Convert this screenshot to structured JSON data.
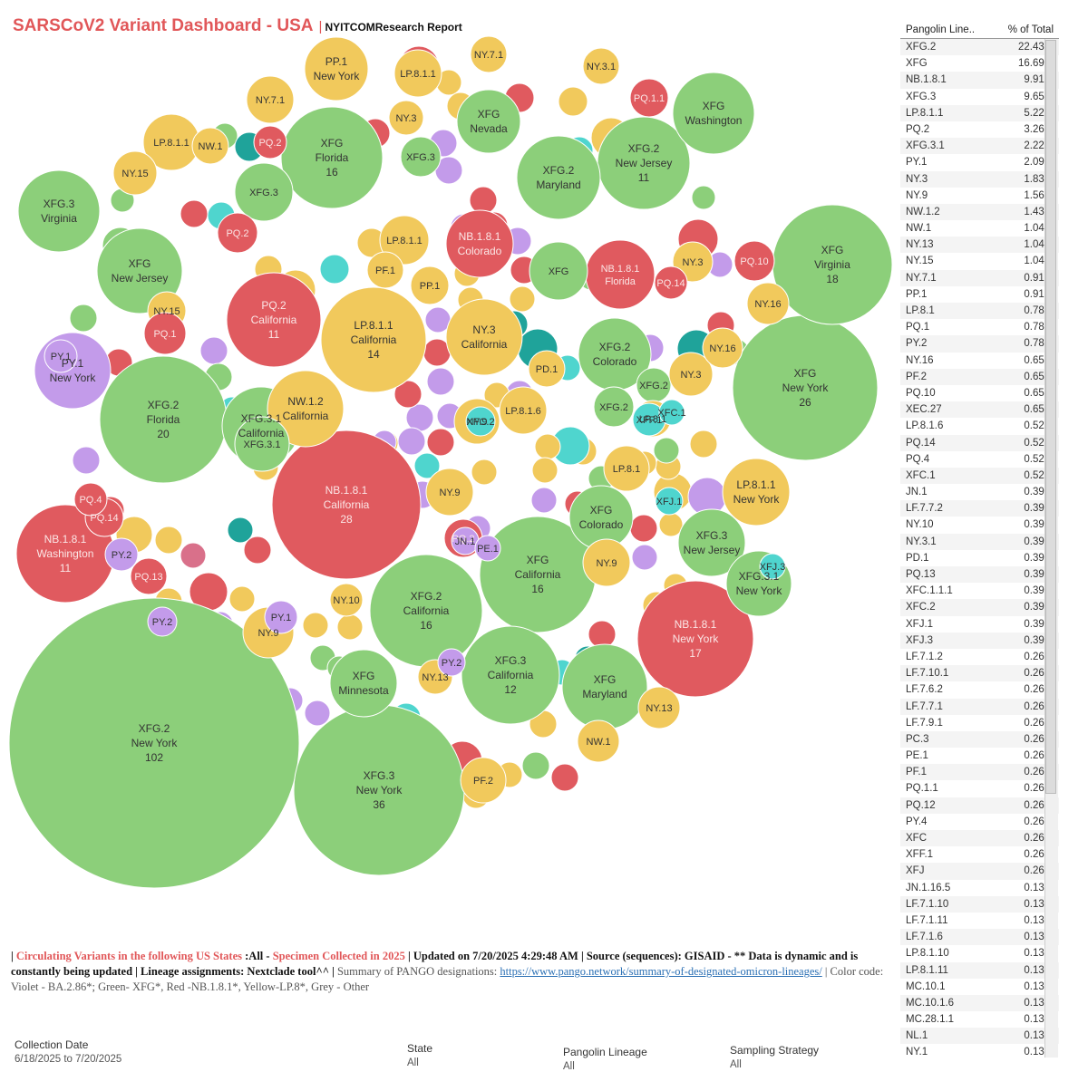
{
  "header": {
    "title": "SARSCoV2 Variant Dashboard - USA",
    "separator": "|",
    "subtitle": "NYITCOMResearch Report"
  },
  "table": {
    "col_lineage": "Pangolin Line..",
    "col_percent": "% of Total",
    "rows": [
      [
        "XFG.2",
        "22.43%"
      ],
      [
        "XFG",
        "16.69%"
      ],
      [
        "NB.1.8.1",
        "9.91%"
      ],
      [
        "XFG.3",
        "9.65%"
      ],
      [
        "LP.8.1.1",
        "5.22%"
      ],
      [
        "PQ.2",
        "3.26%"
      ],
      [
        "XFG.3.1",
        "2.22%"
      ],
      [
        "PY.1",
        "2.09%"
      ],
      [
        "NY.3",
        "1.83%"
      ],
      [
        "NY.9",
        "1.56%"
      ],
      [
        "NW.1.2",
        "1.43%"
      ],
      [
        "NW.1",
        "1.04%"
      ],
      [
        "NY.13",
        "1.04%"
      ],
      [
        "NY.15",
        "1.04%"
      ],
      [
        "NY.7.1",
        "0.91%"
      ],
      [
        "PP.1",
        "0.91%"
      ],
      [
        "LP.8.1",
        "0.78%"
      ],
      [
        "PQ.1",
        "0.78%"
      ],
      [
        "PY.2",
        "0.78%"
      ],
      [
        "NY.16",
        "0.65%"
      ],
      [
        "PF.2",
        "0.65%"
      ],
      [
        "PQ.10",
        "0.65%"
      ],
      [
        "XEC.27",
        "0.65%"
      ],
      [
        "LP.8.1.6",
        "0.52%"
      ],
      [
        "PQ.14",
        "0.52%"
      ],
      [
        "PQ.4",
        "0.52%"
      ],
      [
        "XFC.1",
        "0.52%"
      ],
      [
        "JN.1",
        "0.39%"
      ],
      [
        "LF.7.7.2",
        "0.39%"
      ],
      [
        "NY.10",
        "0.39%"
      ],
      [
        "NY.3.1",
        "0.39%"
      ],
      [
        "PD.1",
        "0.39%"
      ],
      [
        "PQ.13",
        "0.39%"
      ],
      [
        "XFC.1.1.1",
        "0.39%"
      ],
      [
        "XFC.2",
        "0.39%"
      ],
      [
        "XFJ.1",
        "0.39%"
      ],
      [
        "XFJ.3",
        "0.39%"
      ],
      [
        "LF.7.1.2",
        "0.26%"
      ],
      [
        "LF.7.10.1",
        "0.26%"
      ],
      [
        "LF.7.6.2",
        "0.26%"
      ],
      [
        "LF.7.7.1",
        "0.26%"
      ],
      [
        "LF.7.9.1",
        "0.26%"
      ],
      [
        "PC.3",
        "0.26%"
      ],
      [
        "PE.1",
        "0.26%"
      ],
      [
        "PF.1",
        "0.26%"
      ],
      [
        "PQ.1.1",
        "0.26%"
      ],
      [
        "PQ.12",
        "0.26%"
      ],
      [
        "PY.4",
        "0.26%"
      ],
      [
        "XFC",
        "0.26%"
      ],
      [
        "XFF.1",
        "0.26%"
      ],
      [
        "XFJ",
        "0.26%"
      ],
      [
        "JN.1.16.5",
        "0.13%"
      ],
      [
        "LF.7.1.10",
        "0.13%"
      ],
      [
        "LF.7.1.11",
        "0.13%"
      ],
      [
        "LF.7.1.6",
        "0.13%"
      ],
      [
        "LP.8.1.10",
        "0.13%"
      ],
      [
        "LP.8.1.11",
        "0.13%"
      ],
      [
        "MC.10.1",
        "0.13%"
      ],
      [
        "MC.10.1.6",
        "0.13%"
      ],
      [
        "MC.28.1.1",
        "0.13%"
      ],
      [
        "NL.1",
        "0.13%"
      ],
      [
        "NY.1",
        "0.13%"
      ]
    ]
  },
  "note": {
    "p1": "| ",
    "p2": "Circulating Variants in the following US States",
    "p3": " :All - ",
    "p4": "Specimen Collected in 2025",
    "p5": " | Updated on 7/20/2025 4:29:48 AM | Source (sequences): GISAID - ** Data is dynamic and is constantly being updated | Lineage assignments: Nextclade tool^^ |",
    "p6": " Summary of PANGO designations: ",
    "link": "https://www.pango.network/summary-of-designated-omicron-lineages/",
    "p7": " | Color code: Violet - BA.2.86*; Green- XFG*, Red -NB.1.8.1*, Yellow-LP.8*, Grey - Other"
  },
  "filters": {
    "collection_label": "Collection Date",
    "collection_value": "6/18/2025 to 7/20/2025",
    "state_label": "State",
    "state_value": "All",
    "lineage_label": "Pangolin Lineage",
    "lineage_value": "All",
    "sampling_label": "Sampling Strategy",
    "sampling_value": "All"
  },
  "colors": {
    "green": "#8ccf7a",
    "red": "#e05a5f",
    "yellow": "#f1c95c",
    "violet": "#c39bea",
    "cyan": "#4fd5ce",
    "teal": "#1fa39a",
    "pink": "#d9708a"
  },
  "chart_data": {
    "type": "packed-bubble",
    "bubbles": [
      {
        "c": "green",
        "l": [
          "XFG.2",
          "New York",
          "102"
        ]
      },
      {
        "c": "green",
        "l": [
          "XFG.3",
          "New York",
          "36"
        ]
      },
      {
        "c": "red",
        "l": [
          "NB.1.8.1",
          "California",
          "28"
        ]
      },
      {
        "c": "green",
        "l": [
          "XFG",
          "New York",
          "26"
        ]
      },
      {
        "c": "green",
        "l": [
          "XFG.2",
          "Florida",
          "20"
        ]
      },
      {
        "c": "green",
        "l": [
          "XFG",
          "Virginia",
          "18"
        ]
      },
      {
        "c": "red",
        "l": [
          "NB.1.8.1",
          "New York",
          "17"
        ]
      },
      {
        "c": "green",
        "l": [
          "XFG",
          "Florida",
          "16"
        ]
      },
      {
        "c": "green",
        "l": [
          "XFG",
          "California",
          "16"
        ]
      },
      {
        "c": "green",
        "l": [
          "XFG.2",
          "California",
          "16"
        ]
      },
      {
        "c": "yellow",
        "l": [
          "LP.8.1.1",
          "California",
          "14"
        ]
      },
      {
        "c": "green",
        "l": [
          "XFG.3",
          "California",
          "12"
        ]
      },
      {
        "c": "green",
        "l": [
          "XFG.2",
          "New Jersey",
          "11"
        ]
      },
      {
        "c": "red",
        "l": [
          "PQ.2",
          "California",
          "11"
        ]
      },
      {
        "c": "red",
        "l": [
          "NB.1.8.1",
          "Washington",
          "11"
        ]
      },
      {
        "c": "green",
        "l": [
          "XFG",
          "Washington"
        ]
      },
      {
        "c": "green",
        "l": [
          "XFG",
          "Nevada"
        ]
      },
      {
        "c": "green",
        "l": [
          "XFG.2",
          "Maryland"
        ]
      },
      {
        "c": "green",
        "l": [
          "XFG",
          "New Jersey"
        ]
      },
      {
        "c": "green",
        "l": [
          "XFG.3",
          "Virginia"
        ]
      },
      {
        "c": "green",
        "l": [
          "XFG",
          "Maryland"
        ]
      },
      {
        "c": "green",
        "l": [
          "XFG",
          "Minnesota"
        ]
      },
      {
        "c": "green",
        "l": [
          "XFG.2",
          "Colorado"
        ]
      },
      {
        "c": "green",
        "l": [
          "XFG",
          "Colorado"
        ]
      },
      {
        "c": "green",
        "l": [
          "XFG.3",
          "New Jersey"
        ]
      },
      {
        "c": "green",
        "l": [
          "XFG.3.1",
          "California"
        ]
      },
      {
        "c": "green",
        "l": [
          "XFG.3.1",
          "New York"
        ]
      },
      {
        "c": "yellow",
        "l": [
          "NW.1.2",
          "California"
        ]
      },
      {
        "c": "yellow",
        "l": [
          "NY.3",
          "California"
        ]
      },
      {
        "c": "yellow",
        "l": [
          "LP.8.1.1",
          "New York"
        ]
      },
      {
        "c": "yellow",
        "l": [
          "PP.1",
          "New York"
        ]
      },
      {
        "c": "violet",
        "l": [
          "PY.1",
          "New York"
        ]
      },
      {
        "c": "red",
        "l": [
          "NB.1.8.1",
          "Colorado"
        ]
      },
      {
        "c": "red",
        "l": [
          "NB.1.8.1",
          "Florida"
        ]
      },
      {
        "c": "green",
        "l": [
          "XFG"
        ]
      },
      {
        "c": "green",
        "l": [
          "XFG.3"
        ]
      },
      {
        "c": "green",
        "l": [
          "XFG.3"
        ]
      },
      {
        "c": "green",
        "l": [
          "XFG.2"
        ]
      },
      {
        "c": "green",
        "l": [
          "XFG.2"
        ]
      },
      {
        "c": "green",
        "l": [
          "XFG.3.1"
        ]
      },
      {
        "c": "yellow",
        "l": [
          "LP.8.1.1"
        ]
      },
      {
        "c": "yellow",
        "l": [
          "LP.8.1.1"
        ]
      },
      {
        "c": "yellow",
        "l": [
          "LP.8.1.1"
        ]
      },
      {
        "c": "yellow",
        "l": [
          "LP.8.1.6"
        ]
      },
      {
        "c": "yellow",
        "l": [
          "LP.8.1"
        ]
      },
      {
        "c": "yellow",
        "l": [
          "LP.8.1"
        ]
      },
      {
        "c": "yellow",
        "l": [
          "NY.15"
        ]
      },
      {
        "c": "yellow",
        "l": [
          "NY.15"
        ]
      },
      {
        "c": "yellow",
        "l": [
          "NY.9"
        ]
      },
      {
        "c": "yellow",
        "l": [
          "NY.9"
        ]
      },
      {
        "c": "yellow",
        "l": [
          "NY.9"
        ]
      },
      {
        "c": "yellow",
        "l": [
          "NY.9"
        ]
      },
      {
        "c": "yellow",
        "l": [
          "NY.3"
        ]
      },
      {
        "c": "yellow",
        "l": [
          "NY.3"
        ]
      },
      {
        "c": "yellow",
        "l": [
          "NY.3"
        ]
      },
      {
        "c": "yellow",
        "l": [
          "NY.16"
        ]
      },
      {
        "c": "yellow",
        "l": [
          "NY.16"
        ]
      },
      {
        "c": "yellow",
        "l": [
          "NY.10"
        ]
      },
      {
        "c": "yellow",
        "l": [
          "NY.13"
        ]
      },
      {
        "c": "yellow",
        "l": [
          "NY.13"
        ]
      },
      {
        "c": "yellow",
        "l": [
          "NY.7.1"
        ]
      },
      {
        "c": "yellow",
        "l": [
          "NY.7.1"
        ]
      },
      {
        "c": "yellow",
        "l": [
          "NY.3.1"
        ]
      },
      {
        "c": "yellow",
        "l": [
          "NW.1"
        ]
      },
      {
        "c": "yellow",
        "l": [
          "NW.1"
        ]
      },
      {
        "c": "yellow",
        "l": [
          "PF.2"
        ]
      },
      {
        "c": "yellow",
        "l": [
          "PF.1"
        ]
      },
      {
        "c": "yellow",
        "l": [
          "PP.1"
        ]
      },
      {
        "c": "yellow",
        "l": [
          "PD.1"
        ]
      },
      {
        "c": "red",
        "l": [
          "PQ.2"
        ]
      },
      {
        "c": "red",
        "l": [
          "PQ.2"
        ]
      },
      {
        "c": "red",
        "l": [
          "PQ.2"
        ]
      },
      {
        "c": "red",
        "l": [
          "PQ.13"
        ]
      },
      {
        "c": "red",
        "l": [
          "PQ.14"
        ]
      },
      {
        "c": "red",
        "l": [
          "PQ.14"
        ]
      },
      {
        "c": "red",
        "l": [
          "PQ.1"
        ]
      },
      {
        "c": "red",
        "l": [
          "PQ.1.1"
        ]
      },
      {
        "c": "red",
        "l": [
          "PQ.10"
        ]
      },
      {
        "c": "red",
        "l": [
          "PQ.4"
        ]
      },
      {
        "c": "violet",
        "l": [
          "PY.1"
        ]
      },
      {
        "c": "violet",
        "l": [
          "PY.1"
        ]
      },
      {
        "c": "violet",
        "l": [
          "PY.2"
        ]
      },
      {
        "c": "violet",
        "l": [
          "PY.2"
        ]
      },
      {
        "c": "violet",
        "l": [
          "PY.2"
        ]
      },
      {
        "c": "violet",
        "l": [
          "JN.1"
        ]
      },
      {
        "c": "violet",
        "l": [
          "PE.1"
        ]
      },
      {
        "c": "cyan",
        "l": [
          "XFJ.1"
        ]
      },
      {
        "c": "cyan",
        "l": [
          "XFJ.3"
        ]
      },
      {
        "c": "cyan",
        "l": [
          "XFF.1"
        ]
      },
      {
        "c": "cyan",
        "l": [
          "XFC.1"
        ]
      },
      {
        "c": "cyan",
        "l": [
          "XFC.2"
        ]
      }
    ]
  }
}
